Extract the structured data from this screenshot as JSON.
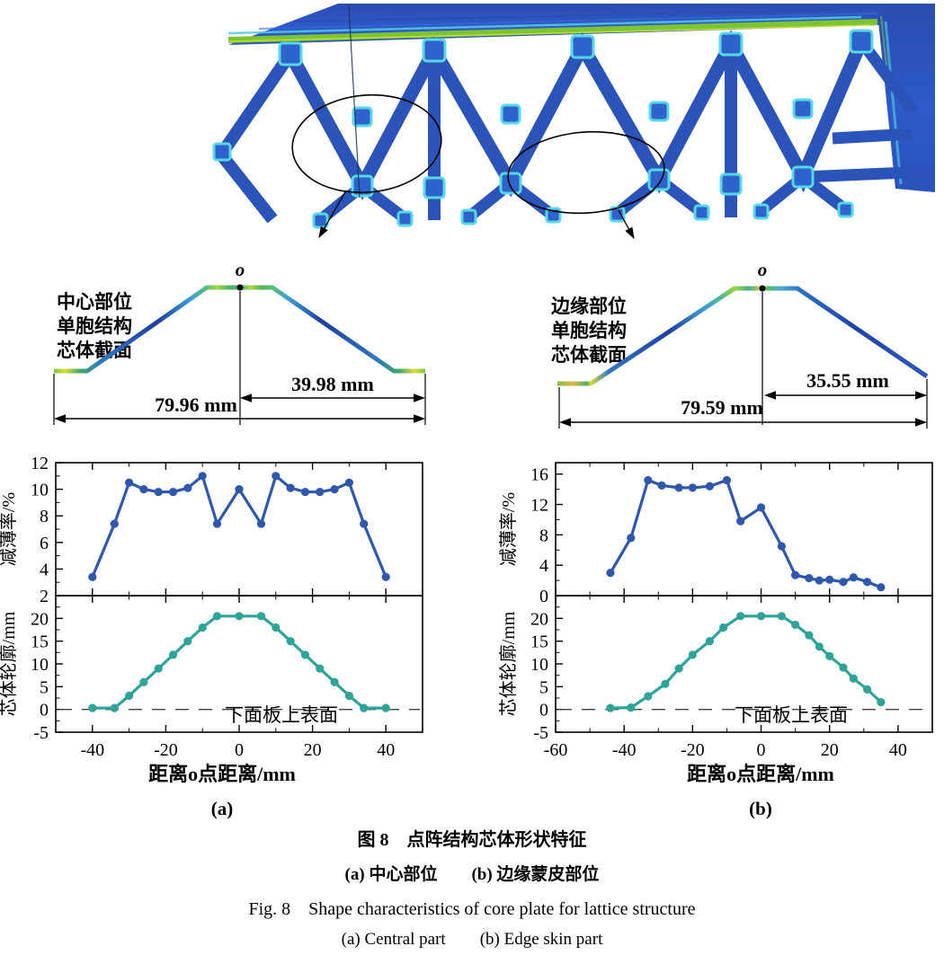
{
  "colors": {
    "thinning_line": "#2f57ae",
    "profile_line": "#2da399",
    "lattice_blue": "#2b54ba",
    "stripe_green": "#7cc430",
    "node_cyan": "#55d8e8"
  },
  "cross_sections": [
    {
      "label_lines": [
        "中心部位",
        "单胞结构",
        "芯体截面"
      ],
      "origin_label": "o",
      "half_width": "39.98 mm",
      "full_width": "79.96 mm"
    },
    {
      "label_lines": [
        "边缘部位",
        "单胞结构",
        "芯体截面"
      ],
      "origin_label": "o",
      "half_width": "35.55 mm",
      "full_width": "79.59 mm"
    }
  ],
  "chart_data": [
    {
      "panel": "(a)",
      "xlabel": "距离o点距离/mm",
      "xlim": [
        -50,
        50
      ],
      "xticks": [
        -40,
        -20,
        0,
        20,
        40
      ],
      "x_minor": 10,
      "subplots": [
        {
          "type": "line",
          "ylabel": "减薄率/%",
          "ylim": [
            2,
            12
          ],
          "yticks": [
            2,
            4,
            6,
            8,
            10,
            12
          ],
          "minor_step": 1,
          "color": "#2f57ae",
          "x": [
            -40,
            -34,
            -30,
            -26,
            -22,
            -18,
            -14,
            -10,
            -6,
            0,
            6,
            10,
            14,
            18,
            22,
            26,
            30,
            34,
            40
          ],
          "y": [
            3.4,
            7.4,
            10.5,
            10.0,
            9.8,
            9.8,
            10.1,
            11.0,
            7.4,
            10.0,
            7.4,
            11.0,
            10.1,
            9.8,
            9.8,
            10.0,
            10.5,
            7.4,
            3.4
          ]
        },
        {
          "type": "line",
          "ylabel": "芯体轮廓/mm",
          "ylim": [
            -5,
            25
          ],
          "yticks": [
            -5,
            0,
            5,
            10,
            15,
            20
          ],
          "minor_step": 2.5,
          "color": "#2da399",
          "ref_line_y": 0,
          "ref_line_label": "下面板上表面",
          "x": [
            -40,
            -34,
            -30,
            -26,
            -22,
            -18,
            -14,
            -10,
            -6,
            0,
            6,
            10,
            14,
            18,
            22,
            26,
            30,
            34,
            40
          ],
          "y": [
            0.3,
            0.3,
            3.0,
            6.0,
            9.0,
            12.0,
            15.0,
            18.0,
            20.5,
            20.5,
            20.5,
            18.0,
            15.0,
            12.0,
            9.0,
            6.0,
            3.0,
            0.3,
            0.3
          ]
        }
      ]
    },
    {
      "panel": "(b)",
      "xlabel": "距离o点距离/mm",
      "xlim": [
        -60,
        50
      ],
      "xticks": [
        -60,
        -40,
        -20,
        0,
        20,
        40
      ],
      "x_minor": 10,
      "subplots": [
        {
          "type": "line",
          "ylabel": "减薄率/%",
          "ylim": [
            0,
            17.5
          ],
          "yticks": [
            0,
            4,
            8,
            12,
            16
          ],
          "minor_step": 2,
          "color": "#2f57ae",
          "x": [
            -44,
            -38,
            -33,
            -29,
            -24,
            -20,
            -15,
            -10,
            -6,
            0,
            6,
            10,
            14,
            17,
            20,
            24,
            27,
            31,
            35
          ],
          "y": [
            3.0,
            7.6,
            15.2,
            14.5,
            14.2,
            14.2,
            14.4,
            15.2,
            9.8,
            11.6,
            6.5,
            2.7,
            2.3,
            2.0,
            2.1,
            1.8,
            2.4,
            1.8,
            1.1
          ]
        },
        {
          "type": "line",
          "ylabel": "芯体轮廓/mm",
          "ylim": [
            -5,
            25
          ],
          "yticks": [
            -5,
            0,
            5,
            10,
            15,
            20
          ],
          "minor_step": 2.5,
          "color": "#2da399",
          "ref_line_y": 0,
          "ref_line_label": "下面板上表面",
          "x": [
            -44,
            -38,
            -33,
            -28,
            -24,
            -20,
            -15,
            -11,
            -6,
            0,
            6,
            10,
            14,
            17,
            20,
            24,
            27,
            31,
            35
          ],
          "y": [
            0.3,
            0.4,
            2.9,
            5.6,
            9.0,
            12.0,
            15.0,
            18.0,
            20.5,
            20.5,
            20.5,
            18.6,
            16.3,
            13.8,
            11.7,
            9.2,
            6.8,
            4.4,
            1.6
          ]
        }
      ]
    }
  ],
  "caption": {
    "line1": "图 8　点阵结构芯体形状特征",
    "line2": "(a) 中心部位　　(b) 边缘蒙皮部位",
    "line3": "Fig. 8　Shape characteristics of core plate for lattice structure",
    "line4": "(a) Central part　　(b) Edge skin part"
  }
}
